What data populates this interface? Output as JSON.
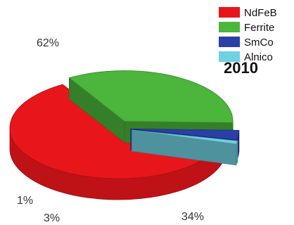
{
  "chart_data": {
    "type": "pie",
    "title": "2010",
    "categories": [
      "NdFeB",
      "Ferrite",
      "SmCo",
      "Alnico"
    ],
    "values": [
      62,
      34,
      3,
      1
    ],
    "value_labels": [
      "62%",
      "34%",
      "3%",
      "1%"
    ],
    "colors": [
      "#e8161b",
      "#4bb53c",
      "#2a3fa8",
      "#6fd1e2"
    ],
    "legend_position": "top-right",
    "three_d": true,
    "exploded": [
      "Ferrite",
      "SmCo",
      "Alnico"
    ]
  }
}
